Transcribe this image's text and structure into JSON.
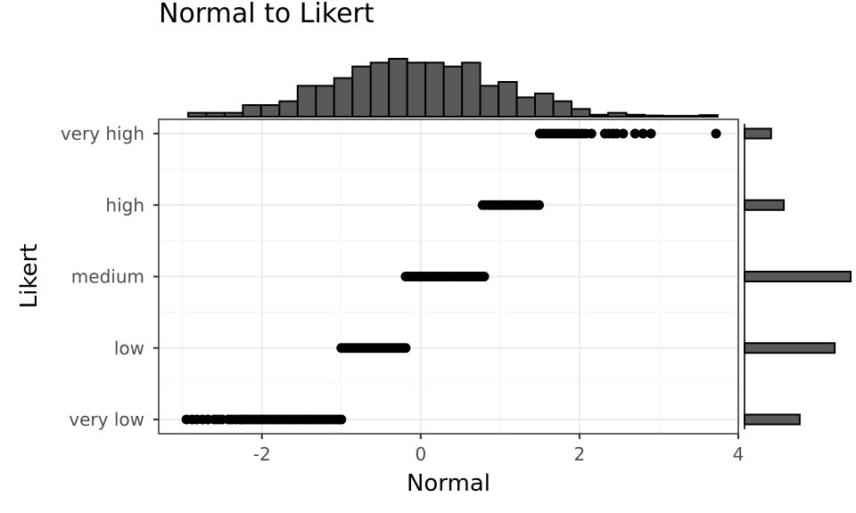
{
  "chart_data": {
    "type": "scatter",
    "title": "Normal to Likert",
    "xlabel": "Normal",
    "ylabel": "Likert",
    "xlim": [
      -3.3,
      4.0
    ],
    "x_ticks": [
      -2,
      0,
      2,
      4
    ],
    "x_tick_labels": [
      "-2",
      "0",
      "2",
      "4"
    ],
    "categories": [
      "very low",
      "low",
      "medium",
      "high",
      "very high"
    ],
    "grid": true,
    "legend": "none",
    "points": [
      {
        "category": "very low",
        "x": [
          -2.95,
          -2.88,
          -2.82,
          -2.75,
          -2.68,
          -2.6,
          -2.55,
          -2.5,
          -2.42,
          -2.38,
          -2.33,
          -2.28,
          -2.25,
          -2.22,
          -2.18,
          -2.14,
          -2.1,
          -2.06,
          -2.02,
          -1.98,
          -1.94,
          -1.9,
          -1.86,
          -1.82,
          -1.78,
          -1.74,
          -1.7,
          -1.66,
          -1.62,
          -1.58,
          -1.54,
          -1.5,
          -1.46,
          -1.42,
          -1.38,
          -1.34,
          -1.3,
          -1.26,
          -1.22,
          -1.18,
          -1.14,
          -1.1,
          -1.06,
          -1.03,
          -1.0
        ]
      },
      {
        "category": "low",
        "x": [
          -1.0,
          -0.97,
          -0.94,
          -0.91,
          -0.88,
          -0.85,
          -0.82,
          -0.79,
          -0.76,
          -0.73,
          -0.7,
          -0.67,
          -0.64,
          -0.61,
          -0.58,
          -0.55,
          -0.52,
          -0.49,
          -0.46,
          -0.43,
          -0.4,
          -0.37,
          -0.34,
          -0.31,
          -0.28,
          -0.25,
          -0.22,
          -0.19
        ]
      },
      {
        "category": "medium",
        "x": [
          -0.19,
          -0.16,
          -0.13,
          -0.1,
          -0.07,
          -0.04,
          -0.01,
          0.02,
          0.05,
          0.08,
          0.11,
          0.14,
          0.17,
          0.2,
          0.23,
          0.26,
          0.29,
          0.32,
          0.35,
          0.38,
          0.41,
          0.44,
          0.47,
          0.5,
          0.53,
          0.56,
          0.59,
          0.62,
          0.65,
          0.68,
          0.71,
          0.74,
          0.77,
          0.8
        ]
      },
      {
        "category": "high",
        "x": [
          0.78,
          0.82,
          0.86,
          0.9,
          0.94,
          0.98,
          1.02,
          1.06,
          1.1,
          1.14,
          1.18,
          1.22,
          1.26,
          1.3,
          1.34,
          1.38,
          1.42,
          1.46,
          1.49
        ]
      },
      {
        "category": "very high",
        "x": [
          1.5,
          1.54,
          1.58,
          1.62,
          1.66,
          1.7,
          1.74,
          1.78,
          1.82,
          1.86,
          1.9,
          1.94,
          1.98,
          2.03,
          2.08,
          2.15,
          2.32,
          2.37,
          2.42,
          2.47,
          2.55,
          2.7,
          2.8,
          2.9,
          3.72
        ]
      }
    ],
    "marginal_top": {
      "type": "histogram",
      "bins": [
        {
          "x0": -2.93,
          "x1": -2.7,
          "count": 1
        },
        {
          "x0": -2.7,
          "x1": -2.47,
          "count": 1
        },
        {
          "x0": -2.47,
          "x1": -2.24,
          "count": 1
        },
        {
          "x0": -2.24,
          "x1": -2.01,
          "count": 3
        },
        {
          "x0": -2.01,
          "x1": -1.78,
          "count": 3
        },
        {
          "x0": -1.78,
          "x1": -1.55,
          "count": 4
        },
        {
          "x0": -1.55,
          "x1": -1.32,
          "count": 8
        },
        {
          "x0": -1.32,
          "x1": -1.09,
          "count": 8
        },
        {
          "x0": -1.09,
          "x1": -0.86,
          "count": 10
        },
        {
          "x0": -0.86,
          "x1": -0.63,
          "count": 13
        },
        {
          "x0": -0.63,
          "x1": -0.4,
          "count": 14
        },
        {
          "x0": -0.4,
          "x1": -0.17,
          "count": 15
        },
        {
          "x0": -0.17,
          "x1": 0.06,
          "count": 14
        },
        {
          "x0": 0.06,
          "x1": 0.29,
          "count": 14
        },
        {
          "x0": 0.29,
          "x1": 0.52,
          "count": 13
        },
        {
          "x0": 0.52,
          "x1": 0.75,
          "count": 14
        },
        {
          "x0": 0.75,
          "x1": 0.98,
          "count": 8
        },
        {
          "x0": 0.98,
          "x1": 1.21,
          "count": 9
        },
        {
          "x0": 1.21,
          "x1": 1.44,
          "count": 5
        },
        {
          "x0": 1.44,
          "x1": 1.67,
          "count": 6
        },
        {
          "x0": 1.67,
          "x1": 1.9,
          "count": 4
        },
        {
          "x0": 1.9,
          "x1": 2.13,
          "count": 2
        },
        {
          "x0": 2.13,
          "x1": 2.36,
          "count": 0.5
        },
        {
          "x0": 2.36,
          "x1": 2.59,
          "count": 1
        },
        {
          "x0": 2.59,
          "x1": 2.82,
          "count": 0.5
        },
        {
          "x0": 2.82,
          "x1": 3.05,
          "count": 0.3
        },
        {
          "x0": 3.05,
          "x1": 3.28,
          "count": 0.2
        },
        {
          "x0": 3.28,
          "x1": 3.51,
          "count": 0.2
        },
        {
          "x0": 3.51,
          "x1": 3.74,
          "count": 0.4
        }
      ]
    },
    "marginal_right": {
      "type": "bar",
      "categories": [
        "very low",
        "low",
        "medium",
        "high",
        "very high"
      ],
      "values": [
        0.52,
        0.85,
        1.0,
        0.37,
        0.25
      ]
    }
  }
}
